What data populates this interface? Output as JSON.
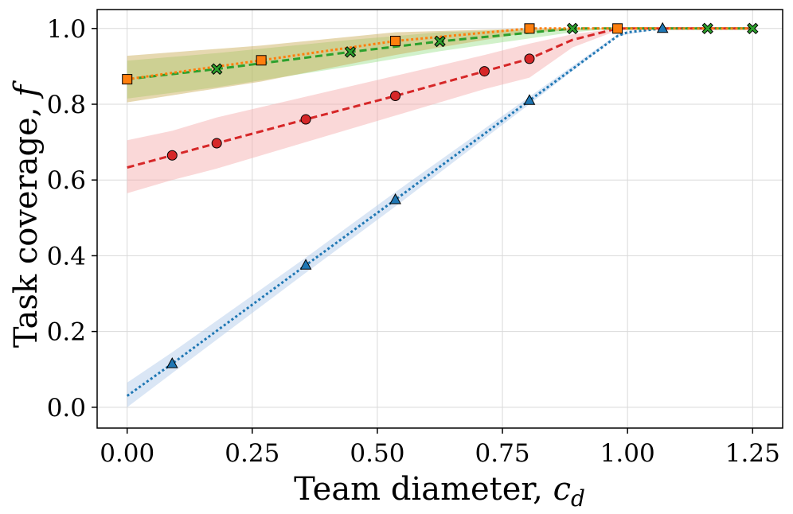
{
  "chart_data": {
    "type": "line",
    "title": "",
    "xlabel": "Team diameter, ",
    "xlabel_var": "c",
    "xlabel_sub": "d",
    "ylabel": "Task coverage, ",
    "ylabel_var": "f",
    "xlim": [
      -0.06,
      1.31
    ],
    "ylim": [
      -0.055,
      1.05
    ],
    "grid": true,
    "legend": "none",
    "xticks": [
      0.0,
      0.25,
      0.5,
      0.75,
      1.0,
      1.25
    ],
    "xtick_labels": [
      "0.00",
      "0.25",
      "0.50",
      "0.75",
      "1.00",
      "1.25"
    ],
    "yticks": [
      0.0,
      0.2,
      0.4,
      0.6,
      0.8,
      1.0
    ],
    "ytick_labels": [
      "0.0",
      "0.2",
      "0.4",
      "0.6",
      "0.8",
      "1.0"
    ],
    "series": [
      {
        "name": "blue-triangle",
        "color": "#1f77b4",
        "band_color": "#aec7e8",
        "line_style": "dotted",
        "marker": "triangle",
        "line_x": [
          0.0,
          0.09,
          0.357,
          0.536,
          0.804,
          0.98,
          1.0,
          1.07,
          1.16,
          1.25
        ],
        "line_y": [
          0.03,
          0.115,
          0.375,
          0.548,
          0.81,
          0.98,
          0.99,
          1.0,
          1.0,
          1.0
        ],
        "band_x": [
          0.0,
          0.09,
          0.357,
          0.536,
          0.804,
          0.98,
          1.07,
          1.16,
          1.25
        ],
        "band_lower": [
          0.0,
          0.09,
          0.355,
          0.53,
          0.8,
          0.98,
          1.0,
          1.0,
          1.0
        ],
        "band_upper": [
          0.065,
          0.145,
          0.395,
          0.568,
          0.82,
          0.985,
          1.0,
          1.0,
          1.0
        ],
        "marker_x": [
          0.09,
          0.357,
          0.536,
          0.804,
          1.07
        ],
        "marker_y": [
          0.115,
          0.375,
          0.548,
          0.81,
          1.0
        ]
      },
      {
        "name": "red-circle",
        "color": "#d62728",
        "band_color": "#f4a8a8",
        "line_style": "dashed",
        "marker": "circle",
        "line_x": [
          0.0,
          0.09,
          0.179,
          0.357,
          0.536,
          0.714,
          0.804,
          0.89,
          0.98,
          1.07,
          1.16,
          1.25
        ],
        "line_y": [
          0.633,
          0.665,
          0.697,
          0.76,
          0.822,
          0.887,
          0.92,
          0.97,
          1.0,
          1.0,
          1.0,
          1.0
        ],
        "band_x": [
          0.0,
          0.09,
          0.179,
          0.357,
          0.536,
          0.714,
          0.804,
          0.89,
          0.98,
          1.07,
          1.16,
          1.25
        ],
        "band_lower": [
          0.565,
          0.6,
          0.63,
          0.7,
          0.77,
          0.84,
          0.87,
          0.95,
          0.995,
          1.0,
          1.0,
          1.0
        ],
        "band_upper": [
          0.705,
          0.73,
          0.765,
          0.82,
          0.875,
          0.93,
          0.96,
          0.985,
          1.0,
          1.0,
          1.0,
          1.0
        ],
        "marker_x": [
          0.09,
          0.179,
          0.357,
          0.536,
          0.714,
          0.804
        ],
        "marker_y": [
          0.665,
          0.697,
          0.76,
          0.822,
          0.887,
          0.92
        ]
      },
      {
        "name": "green-x",
        "color": "#2ca02c",
        "band_color": "#98df8a",
        "line_style": "dashed",
        "marker": "x",
        "line_x": [
          0.0,
          0.179,
          0.446,
          0.625,
          0.89,
          0.98,
          1.07,
          1.16,
          1.25
        ],
        "line_y": [
          0.866,
          0.893,
          0.938,
          0.966,
          1.0,
          1.0,
          1.0,
          1.0,
          1.0
        ],
        "band_x": [
          0.0,
          0.179,
          0.446,
          0.625,
          0.89,
          0.98,
          1.07,
          1.16,
          1.25
        ],
        "band_lower": [
          0.815,
          0.845,
          0.9,
          0.94,
          0.99,
          1.0,
          1.0,
          1.0,
          1.0
        ],
        "band_upper": [
          0.915,
          0.935,
          0.97,
          0.99,
          1.0,
          1.0,
          1.0,
          1.0,
          1.0
        ],
        "marker_x": [
          0.179,
          0.446,
          0.625,
          0.89,
          1.16,
          1.25
        ],
        "marker_y": [
          0.893,
          0.938,
          0.966,
          1.0,
          1.0,
          1.0
        ]
      },
      {
        "name": "orange-square",
        "color": "#ff7f0e",
        "band_color": "#c8a850",
        "line_style": "dotted",
        "marker": "square",
        "line_x": [
          0.0,
          0.268,
          0.536,
          0.804,
          0.98,
          1.07,
          1.16,
          1.25
        ],
        "line_y": [
          0.866,
          0.916,
          0.967,
          1.0,
          1.0,
          1.0,
          1.0,
          1.0
        ],
        "band_x": [
          0.0,
          0.268,
          0.536,
          0.804,
          0.98,
          1.07,
          1.16,
          1.25
        ],
        "band_lower": [
          0.805,
          0.86,
          0.93,
          0.99,
          1.0,
          1.0,
          1.0,
          1.0
        ],
        "band_upper": [
          0.928,
          0.955,
          0.99,
          1.0,
          1.0,
          1.0,
          1.0,
          1.0
        ],
        "marker_x": [
          0.0,
          0.268,
          0.536,
          0.804,
          0.98
        ],
        "marker_y": [
          0.866,
          0.916,
          0.967,
          1.0,
          1.0
        ]
      }
    ]
  }
}
